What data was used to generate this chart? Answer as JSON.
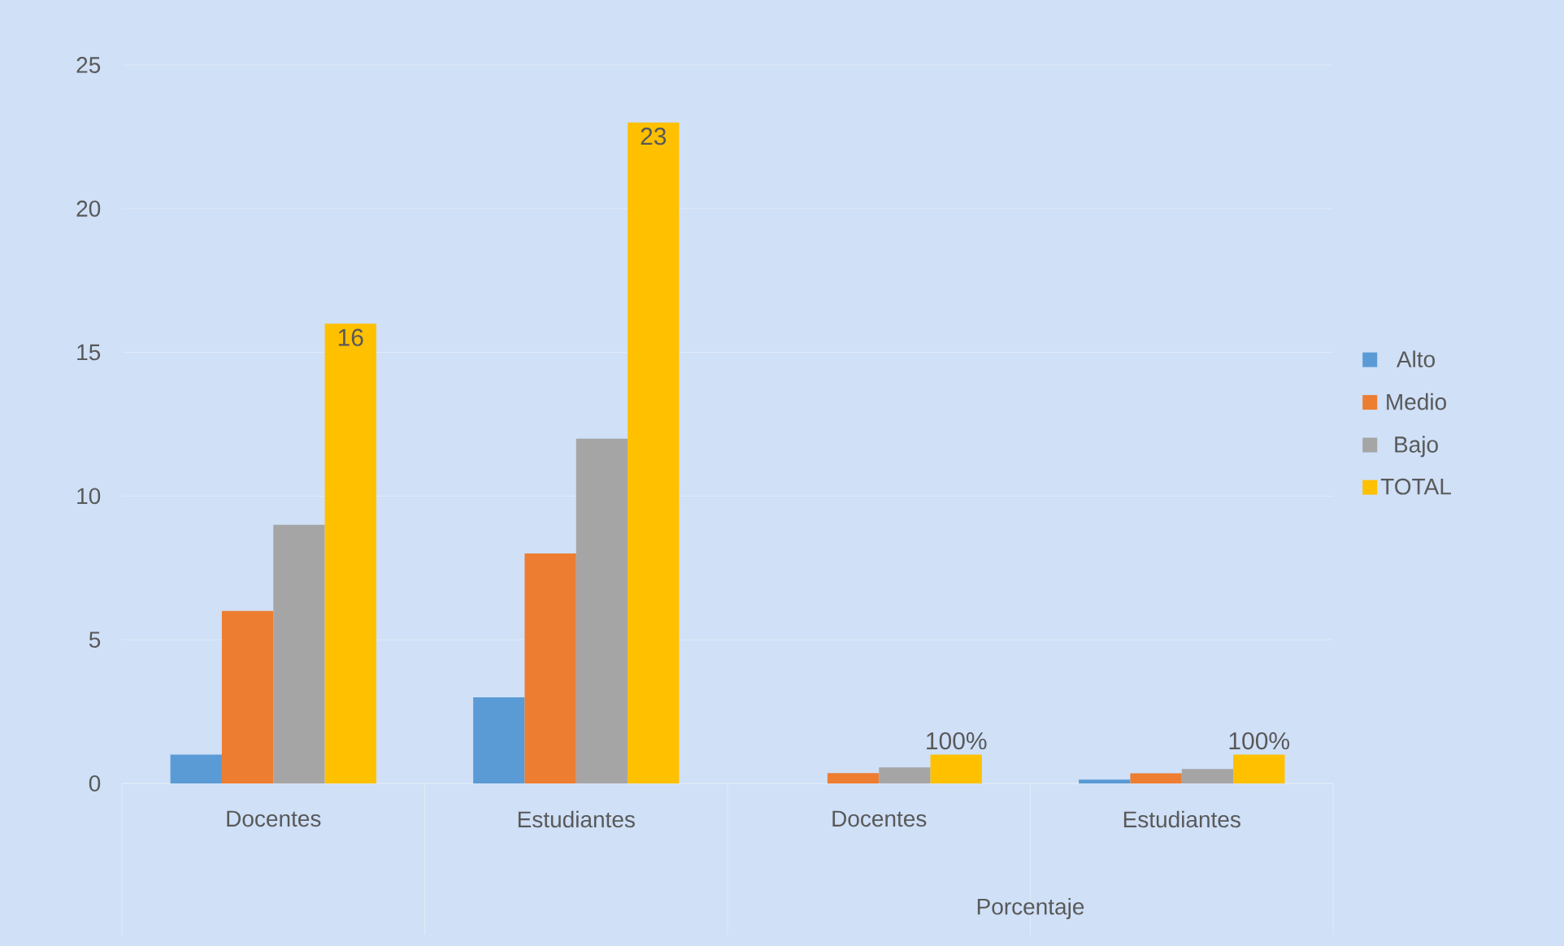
{
  "chart_data": {
    "type": "bar",
    "categories": [
      "Docentes",
      "Estudiantes",
      "Docentes",
      "Estudiantes"
    ],
    "series": [
      {
        "name": "Alto",
        "color": "#5b9bd5",
        "values": [
          1,
          3,
          0,
          0.13
        ]
      },
      {
        "name": "Medio",
        "color": "#ed7d31",
        "values": [
          6,
          8,
          0.36,
          0.35
        ]
      },
      {
        "name": "Bajo",
        "color": "#a5a5a5",
        "values": [
          9,
          12,
          0.56,
          0.5
        ]
      },
      {
        "name": "TOTAL",
        "color": "#ffc000",
        "values": [
          16,
          23,
          1,
          1
        ],
        "value_labels": [
          "16",
          "23",
          "100%",
          "100%"
        ]
      }
    ],
    "annotations": [
      "Porcentaje"
    ],
    "ylim": [
      0,
      25
    ],
    "yticks": [
      0,
      5,
      10,
      15,
      20,
      25
    ],
    "grid": "y",
    "legend": "right"
  }
}
